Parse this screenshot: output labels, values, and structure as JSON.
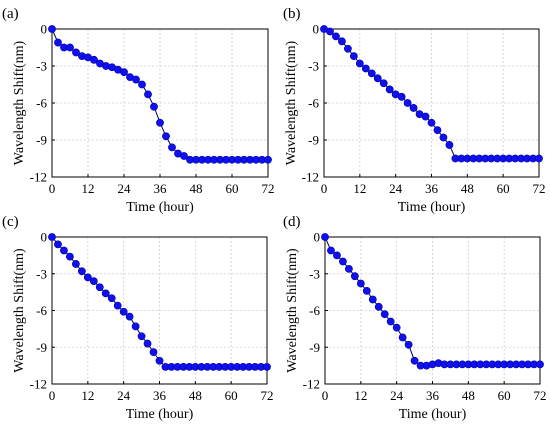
{
  "chart_data": [
    {
      "type": "line",
      "panel_label": "(a)",
      "xlabel": "Time (hour)",
      "ylabel": "Wavelength Shift(nm)",
      "xlim": [
        0,
        72
      ],
      "ylim": [
        -12,
        0
      ],
      "xticks": [
        "0",
        "12",
        "24",
        "36",
        "48",
        "60",
        "72"
      ],
      "yticks": [
        "0",
        "-3",
        "-6",
        "-9",
        "-12"
      ],
      "grid": "on",
      "marker_color": "#1010ee",
      "series": [
        {
          "x": [
            0,
            2,
            4,
            6,
            8,
            10,
            12,
            14,
            16,
            18,
            20,
            22,
            24,
            26,
            28,
            30,
            32,
            34,
            36,
            38,
            40,
            42,
            44,
            46,
            48,
            50,
            52,
            54,
            56,
            58,
            60,
            62,
            64,
            66,
            68,
            70,
            72
          ],
          "y": [
            0,
            -1.1,
            -1.5,
            -1.5,
            -1.9,
            -2.2,
            -2.3,
            -2.5,
            -2.8,
            -3.0,
            -3.1,
            -3.3,
            -3.5,
            -3.9,
            -4.1,
            -4.5,
            -5.3,
            -6.3,
            -7.6,
            -8.7,
            -9.6,
            -10.1,
            -10.3,
            -10.6,
            -10.6,
            -10.6,
            -10.6,
            -10.6,
            -10.6,
            -10.6,
            -10.6,
            -10.6,
            -10.6,
            -10.6,
            -10.6,
            -10.6,
            -10.6
          ]
        }
      ]
    },
    {
      "type": "line",
      "panel_label": "(b)",
      "xlabel": "Time (hour)",
      "ylabel": "Wavelength Shift(nm)",
      "xlim": [
        0,
        72
      ],
      "ylim": [
        -12,
        0
      ],
      "xticks": [
        "0",
        "12",
        "24",
        "36",
        "48",
        "60",
        "72"
      ],
      "yticks": [
        "0",
        "-3",
        "-6",
        "-9",
        "-12"
      ],
      "grid": "on",
      "marker_color": "#1010ee",
      "series": [
        {
          "x": [
            0,
            2,
            4,
            6,
            8,
            10,
            12,
            14,
            16,
            18,
            20,
            22,
            24,
            26,
            28,
            30,
            32,
            34,
            36,
            38,
            40,
            42,
            44,
            46,
            48,
            50,
            52,
            54,
            56,
            58,
            60,
            62,
            64,
            66,
            68,
            70,
            72
          ],
          "y": [
            0,
            -0.2,
            -0.6,
            -1.0,
            -1.6,
            -2.2,
            -2.8,
            -3.2,
            -3.6,
            -4.0,
            -4.4,
            -4.9,
            -5.3,
            -5.5,
            -6.0,
            -6.4,
            -6.9,
            -7.1,
            -7.6,
            -8.2,
            -8.8,
            -9.4,
            -10.5,
            -10.5,
            -10.5,
            -10.5,
            -10.5,
            -10.5,
            -10.5,
            -10.5,
            -10.5,
            -10.5,
            -10.5,
            -10.5,
            -10.5,
            -10.5,
            -10.5
          ]
        }
      ]
    },
    {
      "type": "line",
      "panel_label": "(c)",
      "xlabel": "Time (hour)",
      "ylabel": "Wavelength Shift(nm)",
      "xlim": [
        0,
        72
      ],
      "ylim": [
        -12,
        0
      ],
      "xticks": [
        "0",
        "12",
        "24",
        "36",
        "48",
        "60",
        "72"
      ],
      "yticks": [
        "0",
        "-3",
        "-6",
        "-9",
        "-12"
      ],
      "grid": "on",
      "marker_color": "#1010ee",
      "series": [
        {
          "x": [
            0,
            2,
            4,
            6,
            8,
            10,
            12,
            14,
            16,
            18,
            20,
            22,
            24,
            26,
            28,
            30,
            32,
            34,
            36,
            38,
            40,
            42,
            44,
            46,
            48,
            50,
            52,
            54,
            56,
            58,
            60,
            62,
            64,
            66,
            68,
            70,
            72
          ],
          "y": [
            0,
            -0.6,
            -1.1,
            -1.6,
            -2.2,
            -2.8,
            -3.3,
            -3.6,
            -4.1,
            -4.6,
            -5.0,
            -5.6,
            -6.1,
            -6.5,
            -7.3,
            -8.1,
            -8.7,
            -9.4,
            -10.1,
            -10.6,
            -10.6,
            -10.6,
            -10.6,
            -10.6,
            -10.6,
            -10.6,
            -10.6,
            -10.6,
            -10.6,
            -10.6,
            -10.6,
            -10.6,
            -10.6,
            -10.6,
            -10.6,
            -10.6,
            -10.6
          ]
        }
      ]
    },
    {
      "type": "line",
      "panel_label": "(d)",
      "xlabel": "Time (hour)",
      "ylabel": "Wavelength Shift(nm)",
      "xlim": [
        0,
        72
      ],
      "ylim": [
        -12,
        0
      ],
      "xticks": [
        "0",
        "12",
        "24",
        "36",
        "48",
        "60",
        "72"
      ],
      "yticks": [
        "0",
        "-3",
        "-6",
        "-9",
        "-12"
      ],
      "grid": "on",
      "marker_color": "#1010ee",
      "series": [
        {
          "x": [
            0,
            2,
            4,
            6,
            8,
            10,
            12,
            14,
            16,
            18,
            20,
            22,
            24,
            26,
            28,
            30,
            32,
            34,
            36,
            38,
            40,
            42,
            44,
            46,
            48,
            50,
            52,
            54,
            56,
            58,
            60,
            62,
            64,
            66,
            68,
            70,
            72
          ],
          "y": [
            0,
            -1.1,
            -1.5,
            -2.0,
            -2.6,
            -3.2,
            -3.8,
            -4.4,
            -5.1,
            -5.7,
            -6.3,
            -6.9,
            -7.4,
            -8.2,
            -8.8,
            -10.1,
            -10.5,
            -10.5,
            -10.4,
            -10.3,
            -10.4,
            -10.4,
            -10.4,
            -10.4,
            -10.4,
            -10.4,
            -10.4,
            -10.4,
            -10.4,
            -10.4,
            -10.4,
            -10.4,
            -10.4,
            -10.4,
            -10.4,
            -10.4,
            -10.4
          ]
        }
      ]
    }
  ]
}
